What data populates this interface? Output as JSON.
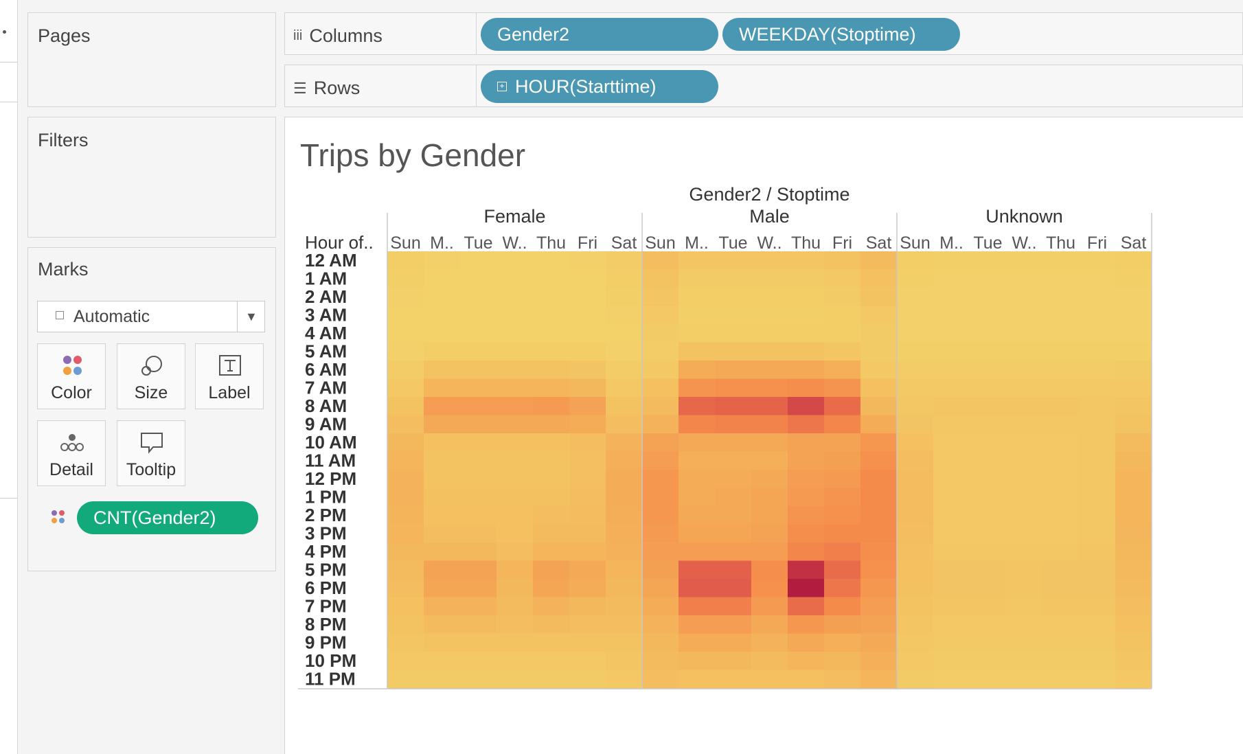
{
  "sidebar": {
    "pages_title": "Pages",
    "filters_title": "Filters",
    "marks": {
      "title": "Marks",
      "mark_type": "Automatic",
      "cards": [
        "Color",
        "Size",
        "Label",
        "Detail",
        "Tooltip"
      ],
      "pill": "CNT(Gender2)"
    }
  },
  "shelves": {
    "columns": {
      "label": "Columns",
      "pills": [
        "Gender2",
        "WEEKDAY(Stoptime)"
      ]
    },
    "rows": {
      "label": "Rows",
      "pills": [
        "HOUR(Starttime)"
      ]
    }
  },
  "view": {
    "title": "Trips by Gender"
  },
  "colors": {
    "pill_blue": "#4a97b4",
    "pill_green": "#13aa7b"
  },
  "chart_data": {
    "type": "heatmap",
    "title": "Trips by Gender",
    "header_title": "Gender2 / Stoptime",
    "row_header": "Hour of..",
    "groups": [
      "Female",
      "Male",
      "Unknown"
    ],
    "day_labels": [
      "Sun",
      "M..",
      "Tue",
      "W..",
      "Thu",
      "Fri",
      "Sat"
    ],
    "hours": [
      "12 AM",
      "1 AM",
      "2 AM",
      "3 AM",
      "4 AM",
      "5 AM",
      "6 AM",
      "7 AM",
      "8 AM",
      "9 AM",
      "10 AM",
      "11 AM",
      "12 PM",
      "1 PM",
      "2 PM",
      "3 PM",
      "4 PM",
      "5 PM",
      "6 PM",
      "7 PM",
      "8 PM",
      "9 PM",
      "10 PM",
      "11 PM"
    ],
    "value_scale": "relative intensity 0-100",
    "values": {
      "Female": [
        [
          4,
          2,
          1,
          1,
          1,
          2,
          5
        ],
        [
          3,
          1,
          1,
          1,
          1,
          1,
          4
        ],
        [
          2,
          1,
          1,
          1,
          1,
          1,
          3
        ],
        [
          1,
          1,
          1,
          1,
          1,
          1,
          2
        ],
        [
          1,
          1,
          1,
          1,
          1,
          1,
          1
        ],
        [
          2,
          4,
          4,
          4,
          4,
          4,
          2
        ],
        [
          5,
          12,
          12,
          12,
          12,
          11,
          5
        ],
        [
          8,
          22,
          22,
          22,
          22,
          20,
          8
        ],
        [
          12,
          38,
          38,
          38,
          40,
          35,
          12
        ],
        [
          16,
          30,
          30,
          30,
          30,
          28,
          16
        ],
        [
          20,
          14,
          14,
          14,
          14,
          16,
          24
        ],
        [
          22,
          12,
          12,
          12,
          12,
          15,
          26
        ],
        [
          24,
          12,
          12,
          12,
          12,
          15,
          28
        ],
        [
          24,
          13,
          13,
          13,
          13,
          16,
          28
        ],
        [
          23,
          14,
          14,
          14,
          16,
          17,
          27
        ],
        [
          22,
          16,
          16,
          14,
          18,
          18,
          26
        ],
        [
          20,
          20,
          20,
          16,
          22,
          22,
          25
        ],
        [
          18,
          34,
          34,
          22,
          34,
          30,
          22
        ],
        [
          16,
          32,
          32,
          20,
          32,
          28,
          20
        ],
        [
          14,
          24,
          24,
          18,
          24,
          20,
          18
        ],
        [
          12,
          18,
          18,
          16,
          18,
          16,
          16
        ],
        [
          10,
          12,
          12,
          12,
          12,
          12,
          12
        ],
        [
          8,
          8,
          8,
          8,
          8,
          8,
          10
        ],
        [
          6,
          6,
          6,
          6,
          6,
          6,
          8
        ]
      ],
      "Male": [
        [
          16,
          10,
          10,
          10,
          10,
          12,
          18
        ],
        [
          12,
          6,
          6,
          6,
          6,
          8,
          14
        ],
        [
          10,
          4,
          4,
          4,
          4,
          6,
          12
        ],
        [
          8,
          3,
          3,
          3,
          3,
          4,
          8
        ],
        [
          6,
          4,
          4,
          4,
          4,
          4,
          6
        ],
        [
          5,
          12,
          12,
          12,
          12,
          10,
          6
        ],
        [
          8,
          28,
          30,
          30,
          30,
          26,
          8
        ],
        [
          14,
          44,
          46,
          46,
          48,
          44,
          14
        ],
        [
          18,
          68,
          70,
          70,
          82,
          66,
          20
        ],
        [
          24,
          52,
          54,
          54,
          60,
          52,
          28
        ],
        [
          34,
          30,
          30,
          30,
          34,
          34,
          42
        ],
        [
          38,
          26,
          26,
          26,
          34,
          36,
          46
        ],
        [
          42,
          28,
          28,
          30,
          38,
          40,
          50
        ],
        [
          42,
          28,
          30,
          32,
          40,
          44,
          50
        ],
        [
          42,
          30,
          30,
          32,
          44,
          46,
          50
        ],
        [
          40,
          32,
          32,
          34,
          48,
          50,
          50
        ],
        [
          38,
          38,
          38,
          38,
          52,
          56,
          48
        ],
        [
          36,
          72,
          72,
          48,
          92,
          66,
          46
        ],
        [
          32,
          74,
          74,
          46,
          100,
          60,
          42
        ],
        [
          28,
          56,
          56,
          40,
          66,
          50,
          38
        ],
        [
          24,
          38,
          38,
          30,
          42,
          36,
          34
        ],
        [
          20,
          28,
          28,
          24,
          30,
          26,
          30
        ],
        [
          18,
          20,
          20,
          18,
          22,
          20,
          26
        ],
        [
          16,
          14,
          14,
          14,
          14,
          16,
          22
        ]
      ],
      "Unknown": [
        [
          4,
          3,
          3,
          3,
          3,
          3,
          4
        ],
        [
          3,
          2,
          2,
          2,
          2,
          2,
          3
        ],
        [
          2,
          2,
          2,
          2,
          2,
          2,
          2
        ],
        [
          2,
          2,
          2,
          2,
          2,
          2,
          2
        ],
        [
          2,
          2,
          2,
          2,
          2,
          2,
          2
        ],
        [
          3,
          3,
          3,
          3,
          3,
          3,
          3
        ],
        [
          5,
          5,
          5,
          5,
          5,
          5,
          6
        ],
        [
          7,
          7,
          7,
          7,
          7,
          7,
          8
        ],
        [
          9,
          10,
          10,
          10,
          10,
          9,
          10
        ],
        [
          11,
          9,
          9,
          9,
          9,
          9,
          12
        ],
        [
          14,
          8,
          8,
          8,
          8,
          9,
          18
        ],
        [
          16,
          8,
          8,
          8,
          8,
          9,
          20
        ],
        [
          17,
          8,
          8,
          8,
          8,
          9,
          22
        ],
        [
          17,
          8,
          8,
          8,
          8,
          9,
          22
        ],
        [
          17,
          8,
          8,
          8,
          8,
          9,
          22
        ],
        [
          16,
          8,
          8,
          8,
          8,
          9,
          21
        ],
        [
          15,
          9,
          9,
          9,
          9,
          10,
          20
        ],
        [
          14,
          11,
          11,
          10,
          11,
          11,
          19
        ],
        [
          13,
          11,
          11,
          10,
          11,
          11,
          18
        ],
        [
          12,
          10,
          10,
          9,
          10,
          10,
          16
        ],
        [
          10,
          8,
          8,
          8,
          8,
          8,
          14
        ],
        [
          9,
          7,
          7,
          7,
          7,
          7,
          12
        ],
        [
          8,
          6,
          6,
          6,
          6,
          6,
          10
        ],
        [
          6,
          5,
          5,
          5,
          5,
          5,
          8
        ]
      ]
    },
    "color_scale": [
      "#f3d36a",
      "#f4b159",
      "#f58b4b",
      "#e05a4a",
      "#b21d3f"
    ],
    "grid": false
  }
}
